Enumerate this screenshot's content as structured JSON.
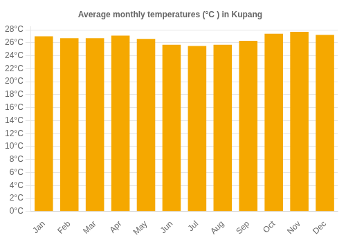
{
  "chart_data": {
    "type": "bar",
    "title": "Average monthly temperatures (°C ) in Kupang",
    "categories": [
      "Jan",
      "Feb",
      "Mar",
      "Apr",
      "May",
      "Jun",
      "Jul",
      "Aug",
      "Sep",
      "Oct",
      "Nov",
      "Dec"
    ],
    "values": [
      27.0,
      26.7,
      26.7,
      27.1,
      26.6,
      25.7,
      25.5,
      25.7,
      26.3,
      27.4,
      27.7,
      27.2
    ],
    "color": "#F5A800",
    "ylim": [
      0,
      28.5
    ],
    "yticks": [
      {
        "value": 0,
        "label": "0°C"
      },
      {
        "value": 2,
        "label": "2°C"
      },
      {
        "value": 4,
        "label": "4°C"
      },
      {
        "value": 6,
        "label": "6°C"
      },
      {
        "value": 8,
        "label": "8°C"
      },
      {
        "value": 10,
        "label": "10°C"
      },
      {
        "value": 12,
        "label": "12°C"
      },
      {
        "value": 14,
        "label": "14°C"
      },
      {
        "value": 16,
        "label": "16°C"
      },
      {
        "value": 18,
        "label": "18°C"
      },
      {
        "value": 20,
        "label": "20°C"
      },
      {
        "value": 22,
        "label": "22°C"
      },
      {
        "value": 24,
        "label": "24°C"
      },
      {
        "value": 26,
        "label": "26°C"
      },
      {
        "value": 28,
        "label": "28°C"
      }
    ],
    "grid": true
  }
}
